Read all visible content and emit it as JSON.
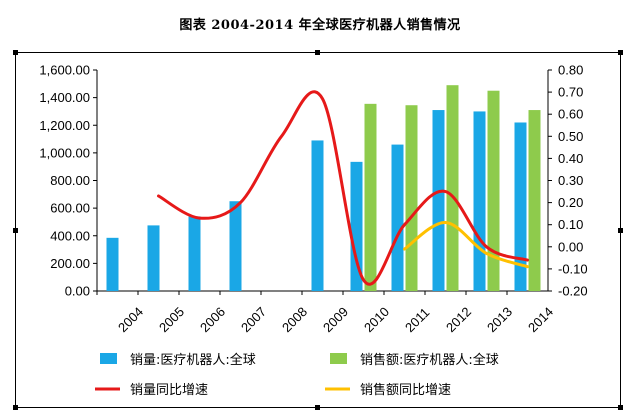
{
  "title": "图表   2004-2014 年全球医疗机器人销售情况",
  "chart_data": {
    "type": "bar+line",
    "categories": [
      "2004",
      "2005",
      "2006",
      "2007",
      "2008",
      "2009",
      "2010",
      "2011",
      "2012",
      "2013",
      "2014"
    ],
    "ylim_left": [
      0,
      1600
    ],
    "yticks_left": [
      "1,600.00",
      "1,400.00",
      "1,200.00",
      "1,000.00",
      "800.00",
      "600.00",
      "400.00",
      "200.00",
      "0.00"
    ],
    "ylim_right": [
      -0.2,
      0.8
    ],
    "yticks_right": [
      "0.80",
      "0.70",
      "0.60",
      "0.50",
      "0.40",
      "0.30",
      "0.20",
      "0.10",
      "0.00",
      "-0.10",
      "-0.20"
    ],
    "series": [
      {
        "name": "销量:医疗机器人:全球",
        "type": "bar",
        "axis": "left",
        "color": "#1aa7e6",
        "values": [
          385,
          475,
          540,
          650,
          null,
          1090,
          935,
          1060,
          1310,
          1300,
          1220
        ]
      },
      {
        "name": "销售额:医疗机器人:全球",
        "type": "bar",
        "axis": "left",
        "color": "#8ecb4c",
        "values": [
          null,
          null,
          null,
          null,
          null,
          null,
          1355,
          1345,
          1490,
          1450,
          1310
        ]
      },
      {
        "name": "销量同比增速",
        "type": "line",
        "axis": "right",
        "color": "#e61919",
        "values": [
          null,
          0.23,
          0.13,
          0.2,
          0.5,
          0.67,
          -0.15,
          0.1,
          0.25,
          0.0,
          -0.06
        ]
      },
      {
        "name": "销售额同比增速",
        "type": "line",
        "axis": "right",
        "color": "#ffc000",
        "values": [
          null,
          null,
          null,
          null,
          null,
          null,
          null,
          -0.01,
          0.11,
          -0.03,
          -0.09
        ]
      }
    ],
    "legend": {
      "placement": "bottom"
    }
  }
}
